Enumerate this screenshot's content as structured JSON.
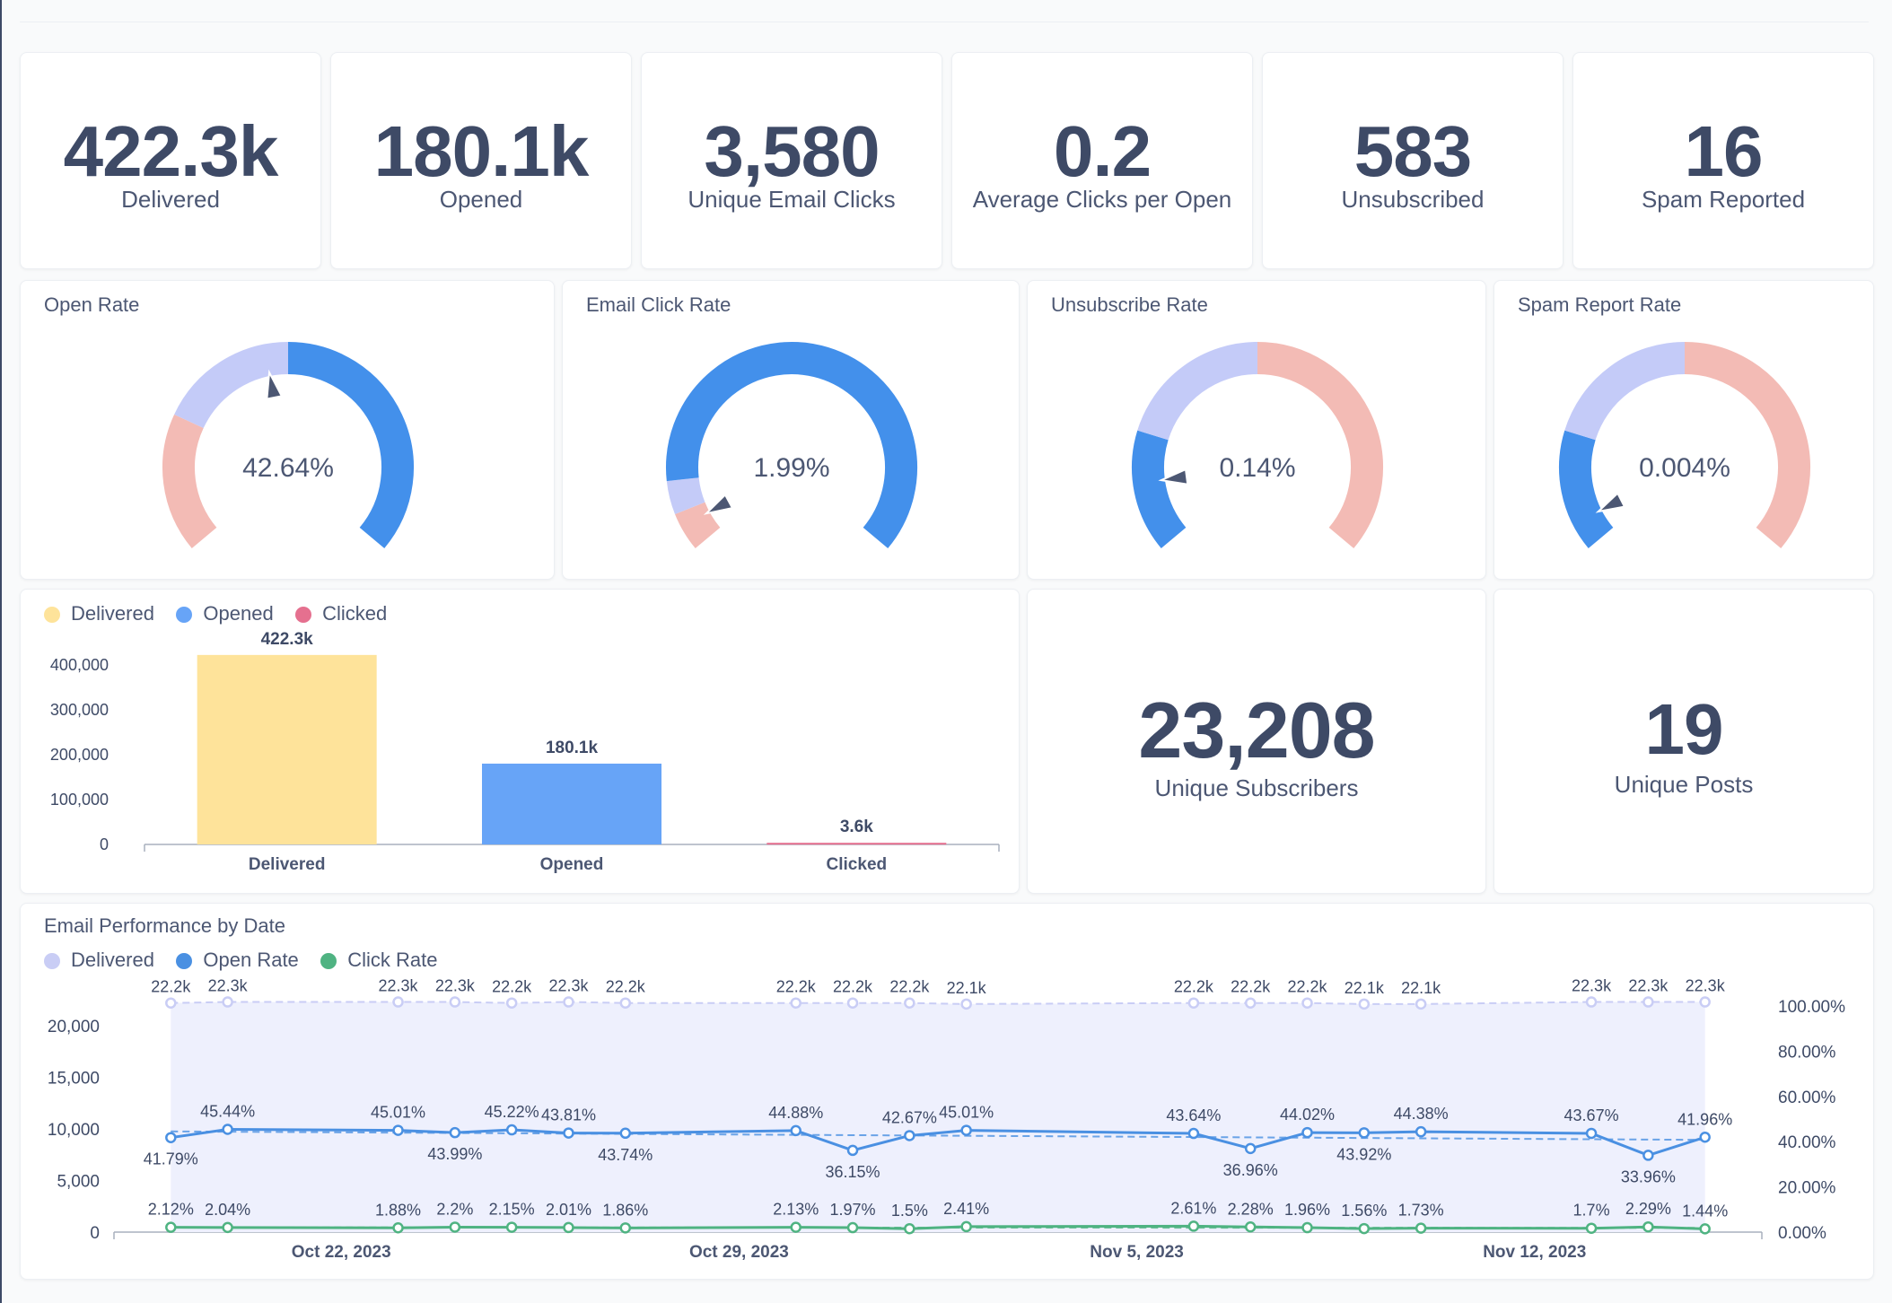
{
  "scalars": [
    {
      "value": "422.3k",
      "label": "Delivered"
    },
    {
      "value": "180.1k",
      "label": "Opened"
    },
    {
      "value": "3,580",
      "label": "Unique Email Clicks"
    },
    {
      "value": "0.2",
      "label": "Average Clicks per Open"
    },
    {
      "value": "583",
      "label": "Unsubscribed"
    },
    {
      "value": "16",
      "label": "Spam Reported"
    }
  ],
  "big_scalars": [
    {
      "value": "23,208",
      "label": "Unique Subscribers"
    },
    {
      "value": "19",
      "label": "Unique Posts"
    }
  ],
  "gauges": [
    {
      "title": "Open Rate",
      "value_label": "42.64%",
      "value": 0.4264
    },
    {
      "title": "Email Click Rate",
      "value_label": "1.99%",
      "value": 0.0199
    },
    {
      "title": "Unsubscribe Rate",
      "value_label": "0.14%",
      "value": 0.0014
    },
    {
      "title": "Spam Report Rate",
      "value_label": "0.004%",
      "value": 4e-05
    }
  ],
  "colors": {
    "gauge_red": "#f3bbb5",
    "gauge_lavender": "#c4cbf8",
    "gauge_blue": "#4390eb",
    "bar_yellow": "#fee39a",
    "bar_blue": "#67a4f7",
    "bar_pink": "#e5708f",
    "line_lavender": "#c9cdf5",
    "area_fill": "#eef0fd",
    "line_blue": "#4a90e2",
    "line_green": "#4fb382",
    "text": "#4c5773",
    "value_text": "#3e4a66"
  },
  "chart_data": [
    {
      "type": "bar",
      "categories": [
        "Delivered",
        "Opened",
        "Clicked"
      ],
      "values": [
        422300,
        180100,
        3600
      ],
      "value_labels": [
        "422.3k",
        "180.1k",
        "3.6k"
      ],
      "legend": [
        "Delivered",
        "Opened",
        "Clicked"
      ],
      "legend_colors": [
        "#fee39a",
        "#67a4f7",
        "#e5708f"
      ],
      "bar_colors": [
        "#fee39a",
        "#67a4f7",
        "#e5708f"
      ],
      "yticks": [
        "400,000",
        "300,000",
        "200,000",
        "100,000",
        "0"
      ],
      "ytick_values": [
        400000,
        300000,
        200000,
        100000,
        0
      ],
      "ylim": [
        0,
        400000
      ],
      "legend_position": "top-left"
    },
    {
      "type": "line",
      "title": "Email Performance by Date",
      "legend": [
        "Delivered",
        "Open Rate",
        "Click Rate"
      ],
      "legend_colors": [
        "#c9cdf5",
        "#4a90e2",
        "#4fb382"
      ],
      "x": [
        "2023-10-19",
        "2023-10-20",
        "2023-10-23",
        "2023-10-24",
        "2023-10-25",
        "2023-10-26",
        "2023-10-27",
        "2023-10-30",
        "2023-10-31",
        "2023-11-01",
        "2023-11-02",
        "2023-11-06",
        "2023-11-07",
        "2023-11-08",
        "2023-11-09",
        "2023-11-10",
        "2023-11-13",
        "2023-11-14",
        "2023-11-15"
      ],
      "xticks": [
        "Oct 22, 2023",
        "Oct 29, 2023",
        "Nov 5, 2023",
        "Nov 12, 2023"
      ],
      "xtick_dates": [
        "2023-10-22",
        "2023-10-29",
        "2023-11-05",
        "2023-11-12"
      ],
      "xlim": [
        "2023-10-18",
        "2023-11-16"
      ],
      "series": [
        {
          "name": "Delivered",
          "axis": "left",
          "values": [
            22200,
            22300,
            22300,
            22300,
            22200,
            22300,
            22200,
            22200,
            22200,
            22200,
            22100,
            22200,
            22200,
            22200,
            22100,
            22100,
            22300,
            22300,
            22300
          ],
          "labels": [
            "22.2k",
            "22.3k",
            "22.3k",
            "22.3k",
            "22.2k",
            "22.3k",
            "22.2k",
            "22.2k",
            "22.2k",
            "22.2k",
            "22.1k",
            "22.2k",
            "22.2k",
            "22.2k",
            "22.1k",
            "22.1k",
            "22.3k",
            "22.3k",
            "22.3k"
          ]
        },
        {
          "name": "Open Rate",
          "axis": "right",
          "values": [
            41.79,
            45.44,
            45.01,
            43.99,
            45.22,
            43.81,
            43.74,
            44.88,
            36.15,
            42.67,
            45.01,
            43.64,
            36.96,
            44.02,
            43.92,
            44.38,
            43.67,
            33.96,
            41.96
          ],
          "labels": [
            "41.79%",
            "45.44%",
            "45.01%",
            "43.99%",
            "45.22%",
            "43.81%",
            "43.74%",
            "44.88%",
            "36.15%",
            "42.67%",
            "45.01%",
            "43.64%",
            "36.96%",
            "44.02%",
            "43.92%",
            "44.38%",
            "43.67%",
            "33.96%",
            "41.96%"
          ]
        },
        {
          "name": "Click Rate",
          "axis": "right",
          "values": [
            2.12,
            2.04,
            1.88,
            2.2,
            2.15,
            2.01,
            1.86,
            2.13,
            1.97,
            1.5,
            2.41,
            2.61,
            2.28,
            1.96,
            1.56,
            1.73,
            1.7,
            2.29,
            1.44
          ],
          "labels": [
            "2.12%",
            "2.04%",
            "1.88%",
            "2.2%",
            "2.15%",
            "2.01%",
            "1.86%",
            "2.13%",
            "1.97%",
            "1.5%",
            "2.41%",
            "2.61%",
            "2.28%",
            "1.96%",
            "1.56%",
            "1.73%",
            "1.7%",
            "2.29%",
            "1.44%"
          ]
        }
      ],
      "yticks_left": [
        "20,000",
        "15,000",
        "10,000",
        "5,000",
        "0"
      ],
      "ytick_values_left": [
        20000,
        15000,
        10000,
        5000,
        0
      ],
      "ylim_left": [
        0,
        24000
      ],
      "yticks_right": [
        "100.00%",
        "80.00%",
        "60.00%",
        "40.00%",
        "20.00%",
        "0.00%"
      ],
      "ytick_values_right": [
        100,
        80,
        60,
        40,
        20,
        0
      ],
      "ylim_right": [
        0,
        100
      ],
      "trend_lines": true,
      "legend_position": "top-left"
    }
  ]
}
